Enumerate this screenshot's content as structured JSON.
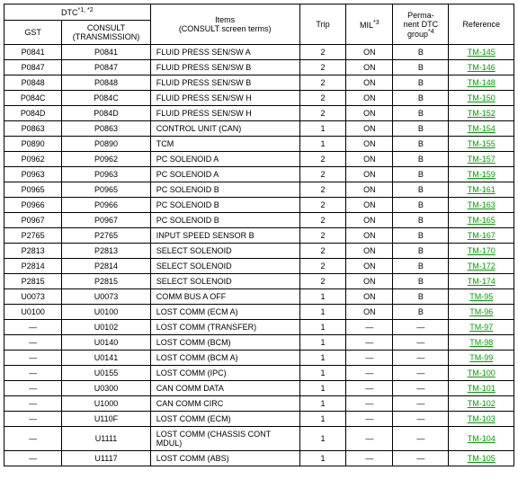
{
  "headers": {
    "dtc": "DTC",
    "dtc_sup": "*1, *2",
    "gst": "GST",
    "consult": "CONSULT (TRANSMISSION)",
    "items": "Items",
    "items_sub": "(CONSULT screen terms)",
    "trip": "Trip",
    "mil": "MIL",
    "mil_sup": "*3",
    "perm1": "Perma-",
    "perm2": "nent DTC",
    "perm3": "group",
    "perm_sup": "*4",
    "ref": "Reference"
  },
  "rows": [
    {
      "gst": "P0841",
      "consult": "P0841",
      "item": "FLUID PRESS SEN/SW A",
      "trip": "2",
      "mil": "ON",
      "perm": "B",
      "ref": "TM-145"
    },
    {
      "gst": "P0847",
      "consult": "P0847",
      "item": "FLUID PRESS SEN/SW B",
      "trip": "2",
      "mil": "ON",
      "perm": "B",
      "ref": "TM-146"
    },
    {
      "gst": "P0848",
      "consult": "P0848",
      "item": "FLUID PRESS SEN/SW B",
      "trip": "2",
      "mil": "ON",
      "perm": "B",
      "ref": "TM-148"
    },
    {
      "gst": "P084C",
      "consult": "P084C",
      "item": "FLUID PRESS SEN/SW H",
      "trip": "2",
      "mil": "ON",
      "perm": "B",
      "ref": "TM-150"
    },
    {
      "gst": "P084D",
      "consult": "P084D",
      "item": "FLUID PRESS SEN/SW H",
      "trip": "2",
      "mil": "ON",
      "perm": "B",
      "ref": "TM-152"
    },
    {
      "gst": "P0863",
      "consult": "P0863",
      "item": "CONTROL UNIT (CAN)",
      "trip": "1",
      "mil": "ON",
      "perm": "B",
      "ref": "TM-154"
    },
    {
      "gst": "P0890",
      "consult": "P0890",
      "item": "TCM",
      "trip": "1",
      "mil": "ON",
      "perm": "B",
      "ref": "TM-155"
    },
    {
      "gst": "P0962",
      "consult": "P0962",
      "item": "PC SOLENOID A",
      "trip": "2",
      "mil": "ON",
      "perm": "B",
      "ref": "TM-157"
    },
    {
      "gst": "P0963",
      "consult": "P0963",
      "item": "PC SOLENOID A",
      "trip": "2",
      "mil": "ON",
      "perm": "B",
      "ref": "TM-159"
    },
    {
      "gst": "P0965",
      "consult": "P0965",
      "item": "PC SOLENOID B",
      "trip": "2",
      "mil": "ON",
      "perm": "B",
      "ref": "TM-161"
    },
    {
      "gst": "P0966",
      "consult": "P0966",
      "item": "PC SOLENOID B",
      "trip": "2",
      "mil": "ON",
      "perm": "B",
      "ref": "TM-163"
    },
    {
      "gst": "P0967",
      "consult": "P0967",
      "item": "PC SOLENOID B",
      "trip": "2",
      "mil": "ON",
      "perm": "B",
      "ref": "TM-165"
    },
    {
      "gst": "P2765",
      "consult": "P2765",
      "item": "INPUT SPEED SENSOR B",
      "trip": "2",
      "mil": "ON",
      "perm": "B",
      "ref": "TM-167"
    },
    {
      "gst": "P2813",
      "consult": "P2813",
      "item": "SELECT SOLENOID",
      "trip": "2",
      "mil": "ON",
      "perm": "B",
      "ref": "TM-170"
    },
    {
      "gst": "P2814",
      "consult": "P2814",
      "item": "SELECT SOLENOID",
      "trip": "2",
      "mil": "ON",
      "perm": "B",
      "ref": "TM-172"
    },
    {
      "gst": "P2815",
      "consult": "P2815",
      "item": "SELECT SOLENOID",
      "trip": "2",
      "mil": "ON",
      "perm": "B",
      "ref": "TM-174"
    },
    {
      "gst": "U0073",
      "consult": "U0073",
      "item": "COMM BUS A OFF",
      "trip": "1",
      "mil": "ON",
      "perm": "B",
      "ref": "TM-95"
    },
    {
      "gst": "U0100",
      "consult": "U0100",
      "item": "LOST COMM (ECM A)",
      "trip": "1",
      "mil": "ON",
      "perm": "B",
      "ref": "TM-96"
    },
    {
      "gst": "—",
      "consult": "U0102",
      "item": "LOST COMM (TRANSFER)",
      "trip": "1",
      "mil": "—",
      "perm": "—",
      "ref": "TM-97"
    },
    {
      "gst": "—",
      "consult": "U0140",
      "item": "LOST COMM (BCM)",
      "trip": "1",
      "mil": "—",
      "perm": "—",
      "ref": "TM-98"
    },
    {
      "gst": "—",
      "consult": "U0141",
      "item": "LOST COMM (BCM A)",
      "trip": "1",
      "mil": "—",
      "perm": "—",
      "ref": "TM-99"
    },
    {
      "gst": "—",
      "consult": "U0155",
      "item": "LOST COMM (IPC)",
      "trip": "1",
      "mil": "—",
      "perm": "—",
      "ref": "TM-100"
    },
    {
      "gst": "—",
      "consult": "U0300",
      "item": "CAN COMM DATA",
      "trip": "1",
      "mil": "—",
      "perm": "—",
      "ref": "TM-101"
    },
    {
      "gst": "—",
      "consult": "U1000",
      "item": "CAN COMM CIRC",
      "trip": "1",
      "mil": "—",
      "perm": "—",
      "ref": "TM-102"
    },
    {
      "gst": "—",
      "consult": "U110F",
      "item": "LOST COMM (ECM)",
      "trip": "1",
      "mil": "—",
      "perm": "—",
      "ref": "TM-103"
    },
    {
      "gst": "—",
      "consult": "U1111",
      "item": "LOST COMM (CHASSIS CONT MDUL)",
      "trip": "1",
      "mil": "—",
      "perm": "—",
      "ref": "TM-104"
    },
    {
      "gst": "—",
      "consult": "U1117",
      "item": "LOST COMM (ABS)",
      "trip": "1",
      "mil": "—",
      "perm": "—",
      "ref": "TM-105"
    }
  ]
}
